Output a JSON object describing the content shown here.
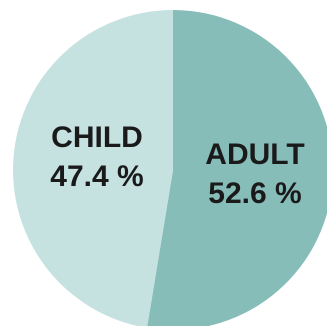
{
  "chart_data": {
    "type": "pie",
    "slices": [
      {
        "name": "ADULT",
        "value": 52.6,
        "value_label": "52.6 %",
        "color": "#86bdb9"
      },
      {
        "name": "CHILD",
        "value": 47.4,
        "value_label": "47.4 %",
        "color": "#c5e2e1"
      }
    ],
    "start": "top",
    "direction": "clockwise",
    "legend": "none",
    "labels": "inside-slices"
  }
}
